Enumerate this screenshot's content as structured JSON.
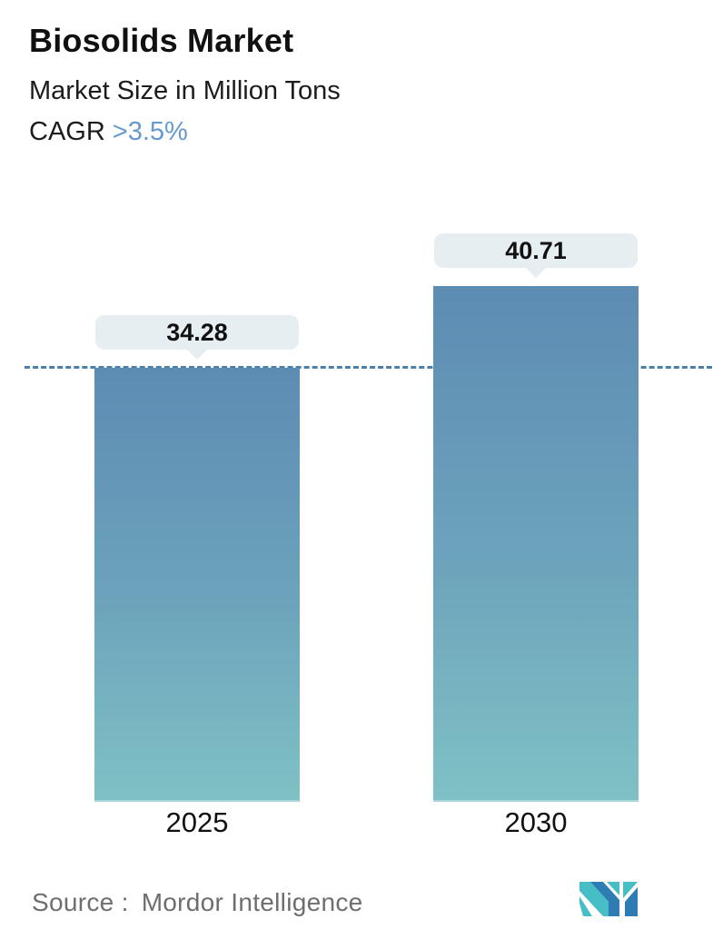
{
  "header": {
    "title": "Biosolids Market",
    "subtitle": "Market Size in Million Tons",
    "cagr_label": "CAGR",
    "cagr_value": ">3.5%"
  },
  "chart_data": {
    "type": "bar",
    "categories": [
      "2025",
      "2030"
    ],
    "values": [
      34.28,
      40.71
    ],
    "value_labels": [
      "34.28",
      "40.71"
    ],
    "title": "Biosolids Market",
    "subtitle": "Market Size in Million Tons",
    "unit": "Million Tons",
    "cagr": ">3.5%",
    "xlabel": "",
    "ylabel": "Market Size in Million Tons",
    "ylim": [
      0,
      43
    ],
    "grid": false,
    "legend_position": "none",
    "reference_line_value": 34.28,
    "reference_line_style": "dashed",
    "reference_line_color": "#4d80a9",
    "bar_gradient_top": "#5d8cb3",
    "bar_gradient_bottom": "#7fc1c5",
    "label_bubble_bg": "#e7eef1"
  },
  "footer": {
    "source_label": "Source :",
    "source_value": "Mordor Intelligence",
    "logo": "mordor-intelligence-logo",
    "logo_teal": "#47bdc6",
    "logo_blue": "#2d7cb4"
  },
  "colors": {
    "background": "#ffffff",
    "title_text": "#111111",
    "cagr_accent": "#6699cc",
    "source_text": "#6e6e6e"
  }
}
